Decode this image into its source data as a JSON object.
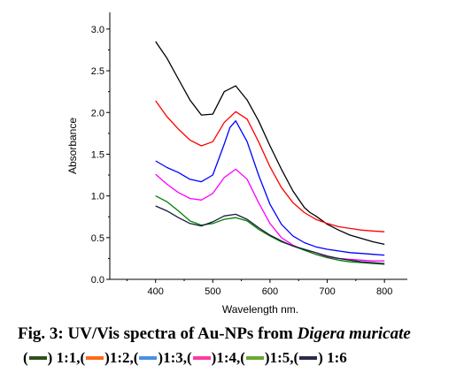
{
  "chart_data": {
    "type": "line",
    "xlabel": "Wavelength nm.",
    "ylabel": "Absorbance",
    "xlim": [
      320,
      840
    ],
    "ylim": [
      0,
      3.2
    ],
    "xticks": [
      400,
      500,
      600,
      700,
      800
    ],
    "yticks": [
      0.0,
      0.5,
      1.0,
      1.5,
      2.0,
      2.5,
      3.0
    ],
    "xtick_labels": [
      "400",
      "500",
      "600",
      "700",
      "800"
    ],
    "ytick_labels": [
      "0.0",
      "0.5",
      "1.0",
      "1.5",
      "2.0",
      "2.5",
      "3.0"
    ],
    "series": [
      {
        "color": "#000000",
        "x": [
          400,
          420,
          440,
          460,
          480,
          500,
          520,
          540,
          560,
          580,
          600,
          620,
          640,
          660,
          670,
          680,
          700,
          720,
          740,
          760,
          780,
          800
        ],
        "y": [
          2.85,
          2.65,
          2.4,
          2.15,
          1.97,
          1.98,
          2.25,
          2.32,
          2.15,
          1.9,
          1.6,
          1.32,
          1.06,
          0.86,
          0.8,
          0.76,
          0.66,
          0.59,
          0.53,
          0.49,
          0.45,
          0.42
        ]
      },
      {
        "color": "#ff0000",
        "x": [
          400,
          420,
          440,
          460,
          480,
          500,
          520,
          540,
          560,
          580,
          600,
          620,
          640,
          660,
          680,
          700,
          720,
          740,
          760,
          780,
          800
        ],
        "y": [
          2.14,
          1.95,
          1.8,
          1.67,
          1.6,
          1.65,
          1.88,
          2.01,
          1.92,
          1.65,
          1.35,
          1.1,
          0.92,
          0.8,
          0.72,
          0.67,
          0.63,
          0.61,
          0.59,
          0.58,
          0.57
        ]
      },
      {
        "color": "#0000ff",
        "x": [
          400,
          420,
          440,
          460,
          480,
          500,
          520,
          530,
          540,
          560,
          580,
          600,
          620,
          640,
          660,
          680,
          700,
          720,
          740,
          760,
          780,
          800
        ],
        "y": [
          1.42,
          1.34,
          1.28,
          1.2,
          1.17,
          1.25,
          1.62,
          1.82,
          1.9,
          1.65,
          1.25,
          0.9,
          0.66,
          0.52,
          0.44,
          0.39,
          0.36,
          0.34,
          0.32,
          0.31,
          0.3,
          0.29
        ]
      },
      {
        "color": "#ff00ff",
        "x": [
          400,
          420,
          440,
          460,
          480,
          500,
          520,
          540,
          560,
          580,
          600,
          620,
          640,
          660,
          680,
          700,
          720,
          740,
          760,
          780,
          800
        ],
        "y": [
          1.26,
          1.14,
          1.04,
          0.97,
          0.95,
          1.03,
          1.22,
          1.32,
          1.2,
          0.92,
          0.67,
          0.5,
          0.41,
          0.35,
          0.3,
          0.27,
          0.25,
          0.24,
          0.23,
          0.22,
          0.22
        ]
      },
      {
        "color": "#008000",
        "x": [
          400,
          420,
          440,
          460,
          480,
          500,
          520,
          540,
          560,
          580,
          600,
          620,
          640,
          660,
          680,
          700,
          720,
          740,
          760,
          780,
          800
        ],
        "y": [
          1.0,
          0.93,
          0.82,
          0.7,
          0.65,
          0.67,
          0.72,
          0.74,
          0.7,
          0.6,
          0.52,
          0.45,
          0.4,
          0.35,
          0.3,
          0.26,
          0.23,
          0.21,
          0.2,
          0.19,
          0.18
        ]
      },
      {
        "color": "#1a1a40",
        "x": [
          400,
          420,
          440,
          460,
          480,
          500,
          520,
          540,
          560,
          580,
          600,
          620,
          640,
          660,
          680,
          700,
          720,
          740,
          760,
          780,
          800
        ],
        "y": [
          0.88,
          0.82,
          0.74,
          0.67,
          0.64,
          0.69,
          0.76,
          0.78,
          0.72,
          0.62,
          0.53,
          0.46,
          0.4,
          0.36,
          0.32,
          0.28,
          0.25,
          0.23,
          0.21,
          0.2,
          0.19
        ]
      }
    ]
  },
  "caption": {
    "prefix": "Fig. 3: UV/Vis spectra of Au-NPs from ",
    "species": "Digera muricate"
  },
  "legend": [
    {
      "open": "(",
      "close": ") 1:1,",
      "color": "#2f4f1f"
    },
    {
      "open": "(",
      "close": ")1:2,",
      "color": "#ff6a1a"
    },
    {
      "open": "(",
      "close": ")1:3,",
      "color": "#4a90e2"
    },
    {
      "open": "(",
      "close": ")1:4,",
      "color": "#ff3aa0"
    },
    {
      "open": "(",
      "close": ")1:5,",
      "color": "#6aa832"
    },
    {
      "open": "(",
      "close": ") 1:6",
      "color": "#2a2a4a"
    }
  ]
}
